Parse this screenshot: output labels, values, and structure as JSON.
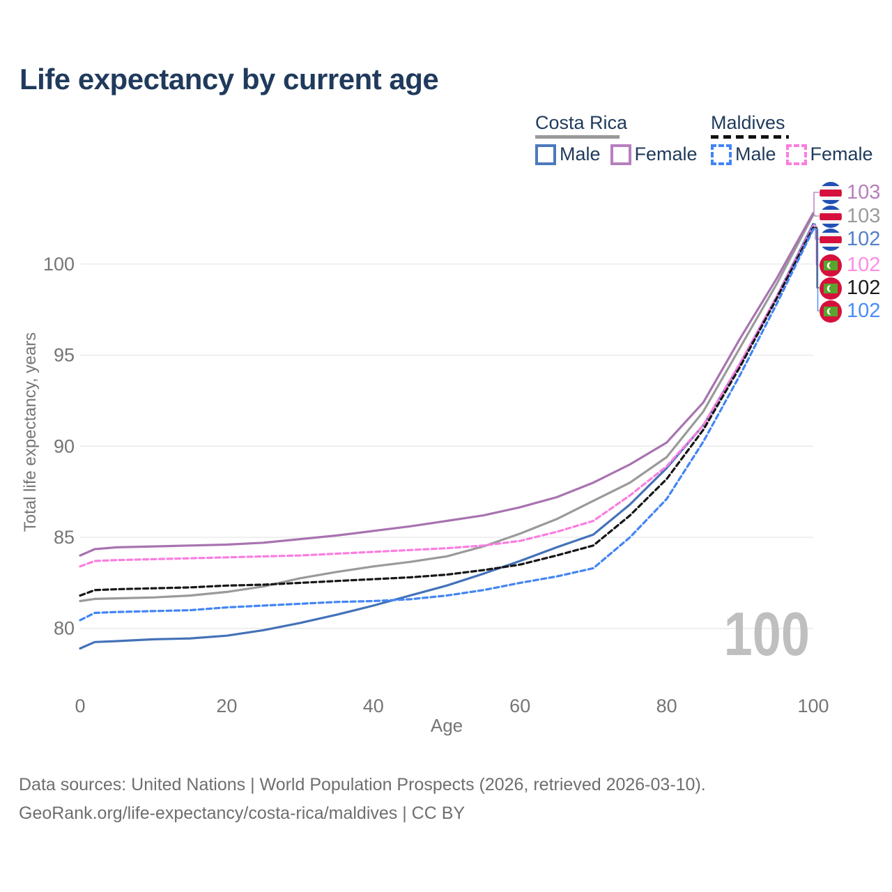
{
  "title": "Life expectancy by current age",
  "legend": {
    "costa_rica": {
      "label": "Costa Rica",
      "male": "Male",
      "female": "Female"
    },
    "maldives": {
      "label": "Maldives",
      "male": "Male",
      "female": "Female"
    }
  },
  "watermark": "100",
  "footer": {
    "line1": "Data sources: United Nations | World Population Prospects (2026, retrieved 2026-03-10).",
    "line2": "GeoRank.org/life-expectancy/costa-rica/maldives | CC BY"
  },
  "chart_data": {
    "type": "line",
    "title": "Life expectancy by current age",
    "xlabel": "Age",
    "ylabel": "Total life expectancy, years",
    "xlim": [
      0,
      100
    ],
    "ylim": [
      78,
      104
    ],
    "x_ticks": [
      0,
      20,
      40,
      60,
      80,
      100
    ],
    "y_ticks": [
      80,
      85,
      90,
      95,
      100
    ],
    "grid": "horizontal",
    "legend_position": "top-right",
    "ages": [
      0,
      2,
      5,
      10,
      15,
      20,
      25,
      30,
      35,
      40,
      45,
      50,
      55,
      60,
      65,
      70,
      75,
      80,
      85,
      90,
      95,
      100
    ],
    "series": [
      {
        "name": "Costa Rica Both sexes",
        "country": "Costa Rica",
        "sex": "Both",
        "color": "#9a9a9a",
        "dashed": false,
        "flag": "costa-rica",
        "end_label": "103",
        "end_label_color": "#9b9b9b",
        "values": [
          81.5,
          81.62,
          81.65,
          81.7,
          81.8,
          82.0,
          82.3,
          82.75,
          83.1,
          83.4,
          83.65,
          83.95,
          84.5,
          85.2,
          86.0,
          87.0,
          88.0,
          89.4,
          91.9,
          95.4,
          98.9,
          102.7
        ]
      },
      {
        "name": "Costa Rica Female",
        "country": "Costa Rica",
        "sex": "Female",
        "color": "#a873b0",
        "dashed": false,
        "flag": "costa-rica",
        "end_label": "103",
        "end_label_color": "#b77fbd",
        "values": [
          84.0,
          84.35,
          84.45,
          84.5,
          84.55,
          84.6,
          84.7,
          84.9,
          85.1,
          85.35,
          85.6,
          85.9,
          86.2,
          86.65,
          87.2,
          88.0,
          89.0,
          90.2,
          92.4,
          95.9,
          99.2,
          102.8
        ]
      },
      {
        "name": "Costa Rica Male",
        "country": "Costa Rica",
        "sex": "Male",
        "color": "#4472b8",
        "dashed": false,
        "flag": "costa-rica",
        "end_label": "102",
        "end_label_color": "#5580c6",
        "values": [
          78.9,
          79.25,
          79.3,
          79.4,
          79.45,
          79.6,
          79.9,
          80.3,
          80.75,
          81.25,
          81.8,
          82.35,
          83.0,
          83.7,
          84.45,
          85.15,
          86.8,
          88.8,
          91.15,
          94.5,
          98.2,
          102.2
        ]
      },
      {
        "name": "Maldives Female",
        "country": "Maldives",
        "sex": "Female",
        "color": "#fb7ddf",
        "dashed": true,
        "flag": "maldives",
        "end_label": "102",
        "end_label_color": "#ff8ce4",
        "values": [
          83.4,
          83.7,
          83.75,
          83.8,
          83.85,
          83.9,
          83.95,
          84.0,
          84.1,
          84.2,
          84.3,
          84.4,
          84.55,
          84.8,
          85.3,
          85.9,
          87.3,
          88.9,
          91.15,
          94.55,
          98.2,
          102.1
        ]
      },
      {
        "name": "Maldives Both sexes",
        "country": "Maldives",
        "sex": "Both",
        "color": "#161616",
        "dashed": true,
        "flag": "maldives",
        "end_label": "102",
        "end_label_color": "#1a1a1a",
        "values": [
          81.8,
          82.1,
          82.15,
          82.2,
          82.25,
          82.35,
          82.4,
          82.5,
          82.6,
          82.7,
          82.8,
          82.95,
          83.2,
          83.5,
          84.0,
          84.55,
          86.2,
          88.2,
          90.9,
          94.35,
          98.1,
          102.0
        ]
      },
      {
        "name": "Maldives Male",
        "country": "Maldives",
        "sex": "Male",
        "color": "#4285f4",
        "dashed": true,
        "flag": "maldives",
        "end_label": "102",
        "end_label_color": "#4a8cf5",
        "values": [
          80.45,
          80.85,
          80.9,
          80.95,
          81.0,
          81.15,
          81.25,
          81.35,
          81.45,
          81.5,
          81.6,
          81.8,
          82.1,
          82.5,
          82.85,
          83.3,
          85.0,
          87.1,
          90.25,
          93.9,
          97.8,
          101.9
        ]
      }
    ]
  }
}
